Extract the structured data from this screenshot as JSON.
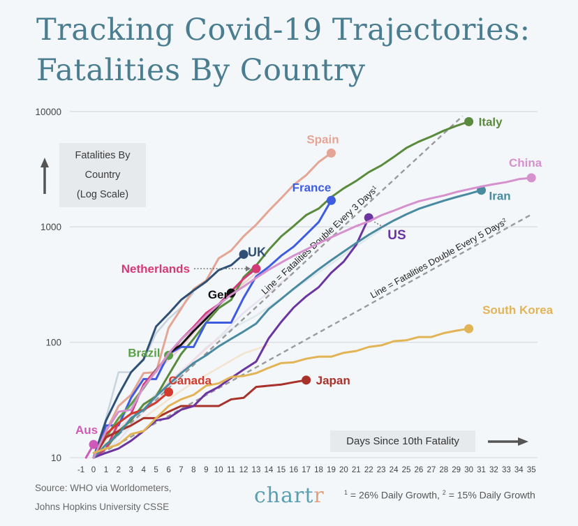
{
  "title_line1": "Tracking Covid-19 Trajectories:",
  "title_line2": "Fatalities By Country",
  "source_line1": "Source: WHO via Worldometers,",
  "source_line2": "Johns Hopkins University CSSE",
  "logo_main": "chart",
  "logo_accent": "r",
  "footnote": {
    "mark1": "1",
    "text1": " = 26% Daily Growth, ",
    "mark2": "2",
    "text2": " = 15% Daily Growth"
  },
  "chart_data": {
    "type": "line",
    "title": "Tracking Covid-19 Trajectories: Fatalities By Country",
    "xlabel": "Days Since 10th Fatality",
    "ylabel_lines": [
      "Fatalities By",
      "Country",
      "(Log Scale)"
    ],
    "yscale": "log",
    "ylim": [
      10,
      10000
    ],
    "xlim": [
      -1,
      35
    ],
    "y_ticks": [
      10,
      100,
      1000,
      10000
    ],
    "y_tick_labels": [
      "10",
      "100",
      "1000",
      "10000"
    ],
    "x_ticks": [
      -1,
      0,
      1,
      2,
      3,
      4,
      5,
      6,
      7,
      8,
      9,
      10,
      11,
      12,
      13,
      14,
      15,
      16,
      17,
      18,
      19,
      20,
      21,
      22,
      23,
      24,
      25,
      26,
      27,
      28,
      29,
      30,
      31,
      32,
      33,
      34,
      35
    ],
    "grid": "horizontal",
    "reference_lines": [
      {
        "label": "Line = Fatalities Double Every 3 Days",
        "sup": "1",
        "doubling_days": 3,
        "start": [
          0,
          10
        ],
        "color": "#9a9a9a"
      },
      {
        "label": "Line = Fatalities Double Every 5 Days",
        "sup": "2",
        "doubling_days": 5,
        "start": [
          0,
          10
        ],
        "color": "#9a9a9a"
      }
    ],
    "series": [
      {
        "name": "Italy",
        "label": "Italy",
        "color": "#5a8a3c",
        "highlight": true,
        "x": [
          0,
          1,
          2,
          3,
          4,
          5,
          6,
          7,
          8,
          9,
          10,
          11,
          12,
          13,
          14,
          15,
          16,
          17,
          18,
          19,
          20,
          21,
          22,
          23,
          24,
          25,
          26,
          27,
          28,
          29,
          30
        ],
        "y": [
          10,
          12,
          17,
          21,
          29,
          34,
          52,
          79,
          107,
          148,
          197,
          233,
          366,
          463,
          631,
          827,
          1016,
          1266,
          1441,
          1809,
          2158,
          2503,
          2978,
          3405,
          4032,
          4825,
          5476,
          6077,
          6820,
          7503,
          8165
        ]
      },
      {
        "name": "Spain",
        "label": "Spain",
        "color": "#e4a595",
        "highlight": true,
        "x": [
          0,
          1,
          2,
          3,
          4,
          5,
          6,
          7,
          8,
          9,
          10,
          11,
          12,
          13,
          14,
          15,
          16,
          17,
          18,
          19
        ],
        "y": [
          10,
          17,
          28,
          35,
          54,
          55,
          133,
          195,
          289,
          342,
          533,
          623,
          830,
          1043,
          1375,
          1772,
          2311,
          2808,
          3647,
          4365
        ]
      },
      {
        "name": "France",
        "label": "France",
        "color": "#3d5ce0",
        "highlight": true,
        "x": [
          0,
          1,
          2,
          3,
          4,
          5,
          6,
          7,
          8,
          9,
          10,
          11,
          12,
          13,
          14,
          15,
          16,
          17,
          18,
          19
        ],
        "y": [
          10,
          19,
          19,
          33,
          48,
          48,
          79,
          91,
          91,
          148,
          148,
          148,
          243,
          372,
          450,
          562,
          674,
          860,
          1100,
          1696
        ]
      },
      {
        "name": "UK",
        "label": "UK",
        "color": "#2f4f75",
        "highlight": true,
        "x": [
          0,
          1,
          2,
          3,
          4,
          5,
          6,
          7,
          8,
          9,
          10,
          11,
          12
        ],
        "y": [
          10,
          21,
          35,
          55,
          71,
          137,
          177,
          233,
          281,
          335,
          422,
          465,
          578
        ]
      },
      {
        "name": "Netherlands",
        "label": "Netherlands",
        "color": "#d43a78",
        "highlight": true,
        "x": [
          0,
          1,
          2,
          3,
          4,
          5,
          6,
          7,
          8,
          9,
          10,
          11,
          12,
          13
        ],
        "y": [
          10,
          12,
          20,
          24,
          43,
          58,
          76,
          106,
          136,
          179,
          213,
          276,
          356,
          434
        ]
      },
      {
        "name": "Germany",
        "label": "Ger",
        "color": "#111111",
        "highlight": true,
        "x": [
          6,
          7,
          8,
          9,
          10,
          11
        ],
        "y": [
          80,
          95,
          125,
          160,
          210,
          267
        ]
      },
      {
        "name": "Brazil",
        "label": "Brazil",
        "color": "#5aa048",
        "highlight": true,
        "x": [
          0,
          1,
          2,
          3,
          4,
          5,
          6
        ],
        "y": [
          10,
          15,
          22,
          29,
          40,
          57,
          77
        ]
      },
      {
        "name": "Canada",
        "label": "Canada",
        "color": "#d23a2e",
        "highlight": true,
        "x": [
          0,
          1,
          2,
          3,
          4,
          5,
          6
        ],
        "y": [
          10,
          16,
          20,
          24,
          26,
          30,
          37
        ]
      },
      {
        "name": "Japan",
        "label": "Japan",
        "color": "#a8322a",
        "highlight": true,
        "x": [
          0,
          1,
          2,
          3,
          4,
          5,
          6,
          7,
          8,
          9,
          10,
          11,
          12,
          13,
          14,
          15,
          16,
          17
        ],
        "y": [
          10,
          15,
          17,
          19,
          22,
          22,
          25,
          28,
          28,
          28,
          28,
          32,
          33,
          41,
          42,
          43,
          45,
          47
        ]
      },
      {
        "name": "Aus",
        "label": "Aus",
        "color": "#d058b8",
        "highlight": true,
        "x": [
          -0.6,
          0
        ],
        "y": [
          10,
          13
        ]
      },
      {
        "name": "US",
        "label": "US",
        "color": "#6a35a0",
        "highlight": true,
        "x": [
          0,
          1,
          2,
          3,
          4,
          5,
          6,
          7,
          8,
          9,
          10,
          11,
          12,
          13,
          14,
          15,
          16,
          17,
          18,
          19,
          20,
          21,
          22
        ],
        "y": [
          10,
          11,
          12,
          14,
          17,
          21,
          22,
          26,
          28,
          36,
          41,
          49,
          58,
          68,
          108,
          150,
          200,
          250,
          300,
          400,
          500,
          700,
          1200
        ]
      },
      {
        "name": "Iran",
        "label": "Iran",
        "color": "#4a8aa0",
        "highlight": true,
        "x": [
          0,
          1,
          2,
          3,
          4,
          5,
          6,
          7,
          8,
          9,
          10,
          11,
          12,
          13,
          14,
          15,
          16,
          17,
          18,
          19,
          20,
          21,
          22,
          23,
          24,
          25,
          26,
          27,
          28,
          29,
          30,
          31
        ],
        "y": [
          10,
          13,
          16,
          22,
          26,
          34,
          43,
          54,
          66,
          77,
          92,
          107,
          124,
          145,
          194,
          237,
          291,
          354,
          429,
          514,
          611,
          724,
          853,
          988,
          1135,
          1284,
          1433,
          1556,
          1685,
          1812,
          1934,
          2077
        ]
      },
      {
        "name": "China",
        "label": "China",
        "color": "#d591cd",
        "highlight": true,
        "x": [
          0,
          1,
          2,
          3,
          4,
          5,
          6,
          7,
          8,
          9,
          10,
          11,
          12,
          13,
          14,
          15,
          16,
          17,
          18,
          19,
          20,
          21,
          22,
          23,
          24,
          25,
          26,
          27,
          28,
          29,
          30,
          31,
          32,
          33,
          34,
          35
        ],
        "y": [
          10,
          17,
          25,
          26,
          41,
          56,
          80,
          106,
          132,
          170,
          213,
          259,
          304,
          361,
          425,
          490,
          563,
          636,
          722,
          811,
          908,
          1016,
          1113,
          1259,
          1381,
          1524,
          1665,
          1770,
          1868,
          2004,
          2118,
          2236,
          2345,
          2442,
          2592,
          2663
        ]
      },
      {
        "name": "South Korea",
        "label": "South Korea",
        "color": "#e2b455",
        "highlight": true,
        "x": [
          0,
          1,
          2,
          3,
          4,
          5,
          6,
          7,
          8,
          9,
          10,
          11,
          12,
          13,
          14,
          15,
          16,
          17,
          18,
          19,
          20,
          21,
          22,
          23,
          24,
          25,
          26,
          27,
          28,
          29,
          30
        ],
        "y": [
          11,
          12,
          13,
          16,
          17,
          22,
          28,
          32,
          35,
          42,
          44,
          50,
          51,
          54,
          60,
          66,
          67,
          72,
          75,
          75,
          81,
          84,
          91,
          94,
          102,
          104,
          111,
          111,
          120,
          126,
          131
        ]
      }
    ],
    "annotations": [
      {
        "text": "Netherlands",
        "arrow_to": "Netherlands endpoint",
        "style": "dotted"
      },
      {
        "text": "US",
        "arrow_to": "US endpoint",
        "style": "dotted"
      }
    ],
    "legend": "inline-labels"
  }
}
